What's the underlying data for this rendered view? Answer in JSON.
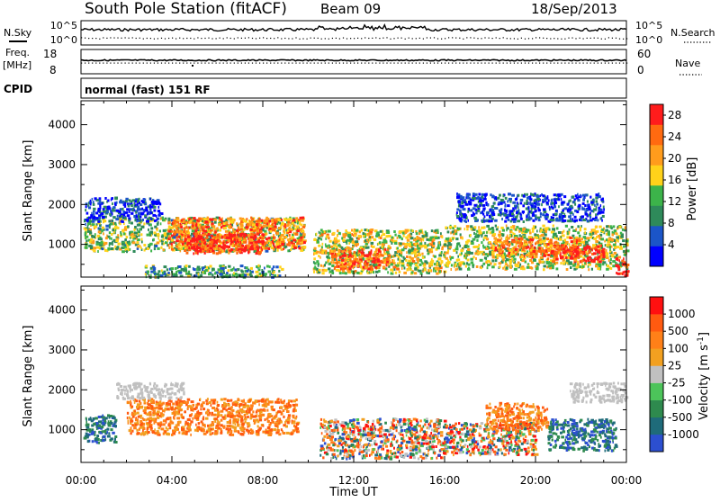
{
  "header": {
    "station": "South Pole Station (fitACF)",
    "beam": "Beam 09",
    "date": "18/Sep/2013"
  },
  "sky_panel": {
    "left_label": "N.Sky",
    "left_ticks": [
      "10^5",
      "10^0"
    ],
    "right_ticks": [
      "10^5",
      "10^0"
    ],
    "right_label": "N.Search"
  },
  "freq_panel": {
    "left_label_1": "Freq.",
    "left_label_2": "[MHz]",
    "left_ticks": [
      "18",
      "8"
    ],
    "right_ticks": [
      "60",
      "0"
    ],
    "right_label": "Nave"
  },
  "cpid_panel": {
    "label": "CPID",
    "program": "normal (fast) 151 RF"
  },
  "time_axis": {
    "label": "Time UT",
    "ticks": [
      "00:00",
      "04:00",
      "08:00",
      "12:00",
      "16:00",
      "20:00",
      "00:00"
    ]
  },
  "colors": {
    "power": [
      "#0000ff",
      "#1b55c8",
      "#2e8a5a",
      "#3cb34a",
      "#ffd21a",
      "#ff9c1c",
      "#ff6a10",
      "#ff1c1c"
    ],
    "velocity": [
      "#2c4fd0",
      "#1f6b7a",
      "#2e8a4e",
      "#4cc45a",
      "#c0c0c0",
      "#f2a020",
      "#ff8018",
      "#ff5a10",
      "#ff1010"
    ]
  },
  "chart_data": [
    {
      "type": "heatmap",
      "title": "",
      "ylabel": "Slant Range [km]",
      "xlabel": "",
      "xlim": [
        0,
        24
      ],
      "ylim": [
        180,
        4600
      ],
      "yticks": [
        "1000",
        "2000",
        "3000",
        "4000"
      ],
      "colorbar": {
        "label": "Power [dB]",
        "ticks": [
          "4",
          "8",
          "12",
          "16",
          "20",
          "24",
          "28"
        ],
        "range": [
          0,
          30
        ]
      },
      "echo_regions": [
        {
          "t": [
            0.1,
            9.8
          ],
          "r": [
            850,
            1700
          ],
          "level": 0.45
        },
        {
          "t": [
            3.8,
            9.8
          ],
          "r": [
            900,
            1700
          ],
          "level": 0.75
        },
        {
          "t": [
            4.5,
            8.0
          ],
          "r": [
            800,
            1300
          ],
          "level": 0.95
        },
        {
          "t": [
            0.1,
            3.5
          ],
          "r": [
            1600,
            2200
          ],
          "level": 0.15
        },
        {
          "t": [
            10.2,
            16.0
          ],
          "r": [
            300,
            1400
          ],
          "level": 0.55
        },
        {
          "t": [
            11.0,
            13.5
          ],
          "r": [
            400,
            900
          ],
          "level": 0.85
        },
        {
          "t": [
            16.0,
            24.0
          ],
          "r": [
            400,
            1500
          ],
          "level": 0.5
        },
        {
          "t": [
            18.0,
            22.0
          ],
          "r": [
            700,
            1200
          ],
          "level": 0.75
        },
        {
          "t": [
            20.5,
            23.0
          ],
          "r": [
            600,
            1000
          ],
          "level": 0.95
        },
        {
          "t": [
            23.5,
            24.0
          ],
          "r": [
            250,
            700
          ],
          "level": 0.95
        },
        {
          "t": [
            16.5,
            23.0
          ],
          "r": [
            1600,
            2300
          ],
          "level": 0.15
        },
        {
          "t": [
            2.8,
            8.8
          ],
          "r": [
            200,
            500
          ],
          "level": 0.35
        }
      ]
    },
    {
      "type": "heatmap",
      "title": "",
      "ylabel": "Slant Range [km]",
      "xlabel": "Time UT",
      "xlim": [
        0,
        24
      ],
      "ylim": [
        180,
        4600
      ],
      "yticks": [
        "1000",
        "2000",
        "3000",
        "4000"
      ],
      "colorbar": {
        "label": "Velocity [m s^-1]",
        "ticks": [
          "1000",
          "500",
          "100",
          "25",
          "-25",
          "-100",
          "-500",
          "-1000"
        ],
        "range": [
          -1200,
          1200
        ]
      },
      "echo_regions": [
        {
          "t": [
            0.1,
            1.5
          ],
          "r": [
            700,
            1400
          ],
          "level": "toward"
        },
        {
          "t": [
            2.0,
            9.5
          ],
          "r": [
            900,
            1800
          ],
          "level": "away"
        },
        {
          "t": [
            10.5,
            16.0
          ],
          "r": [
            300,
            1300
          ],
          "level": "mixed"
        },
        {
          "t": [
            16.0,
            20.0
          ],
          "r": [
            400,
            1200
          ],
          "level": "mixed"
        },
        {
          "t": [
            17.8,
            20.5
          ],
          "r": [
            1000,
            1700
          ],
          "level": "away"
        },
        {
          "t": [
            20.5,
            23.5
          ],
          "r": [
            500,
            1300
          ],
          "level": "toward"
        },
        {
          "t": [
            1.5,
            4.5
          ],
          "r": [
            1800,
            2200
          ],
          "level": "near-zero"
        },
        {
          "t": [
            21.5,
            24.0
          ],
          "r": [
            1700,
            2200
          ],
          "level": "near-zero"
        }
      ]
    }
  ]
}
